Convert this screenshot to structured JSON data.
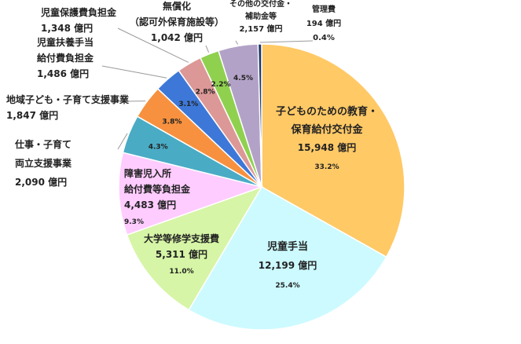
{
  "chart_data": {
    "type": "pie",
    "start": "12 o'clock",
    "direction": "clockwise",
    "slices": [
      {
        "name": [
          "子どものための教育・",
          "保育給付交付金"
        ],
        "value_text": "15,948 億円",
        "pct_text": "33.2%",
        "value": 15948,
        "percent": 33.2,
        "color": "#ffc966"
      },
      {
        "name": [
          "児童手当"
        ],
        "value_text": "12,199 億円",
        "pct_text": "25.4%",
        "value": 12199,
        "percent": 25.4,
        "color": "#ccfaff"
      },
      {
        "name": [
          "大学等修学支援費"
        ],
        "value_text": "5,311 億円",
        "pct_text": "11.0%",
        "value": 5311,
        "percent": 11.0,
        "color": "#d6f5a6"
      },
      {
        "name": [
          "障害児入所",
          "給付費等負担金"
        ],
        "value_text": "4,483 億円",
        "pct_text": "9.3%",
        "value": 4483,
        "percent": 9.3,
        "color": "#ffccff"
      },
      {
        "name": [
          "仕事・子育て",
          "両立支援事業"
        ],
        "value_text": "2,090 億円",
        "pct_text": "4.3%",
        "value": 2090,
        "percent": 4.3,
        "color": "#4aabc5"
      },
      {
        "name": [
          "地域子ども・子育て支援事業"
        ],
        "value_text": "1,847 億円",
        "pct_text": "3.8%",
        "value": 1847,
        "percent": 3.8,
        "color": "#f7913f"
      },
      {
        "name": [
          "児童扶養手当",
          "給付費負担金"
        ],
        "value_text": "1,486 億円",
        "pct_text": "3.1%",
        "value": 1486,
        "percent": 3.1,
        "color": "#3d78d8"
      },
      {
        "name": [
          "児童保護費負担金"
        ],
        "value_text": "1,348 億円",
        "pct_text": "2.8%",
        "value": 1348,
        "percent": 2.8,
        "color": "#dc9896"
      },
      {
        "name": [
          "無償化",
          "（認可外保育施設等）"
        ],
        "value_text": "1,042 億円",
        "pct_text": "2.2%",
        "value": 1042,
        "percent": 2.2,
        "color": "#8fd14f"
      },
      {
        "name": [
          "その他の交付金・",
          "補助金等"
        ],
        "value_text": "2,157 億円",
        "pct_text": "4.5%",
        "value": 2157,
        "percent": 4.5,
        "color": "#b3a2c7"
      },
      {
        "name": [
          "管理費"
        ],
        "value_text": "194 億円",
        "pct_text": "0.4%",
        "value": 194,
        "percent": 0.4,
        "color": "#1f3864"
      }
    ]
  }
}
